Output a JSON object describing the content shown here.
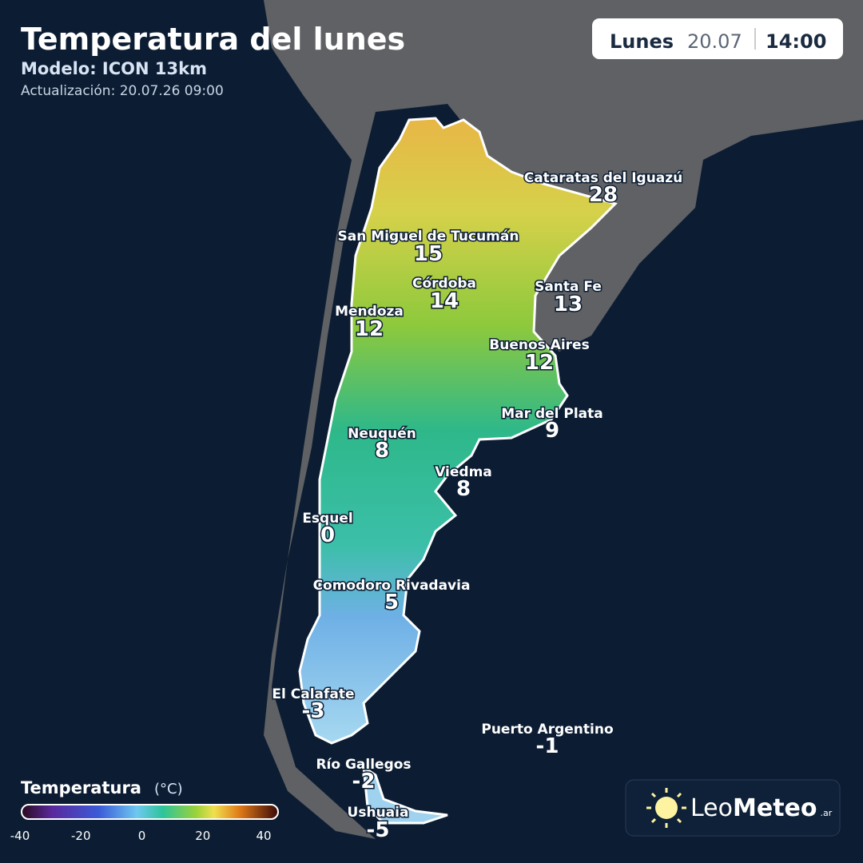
{
  "header": {
    "title": "Temperatura del lunes",
    "model": "Modelo: ICON 13km",
    "updated": "Actualización: 20.07.26 09:00"
  },
  "date_box": {
    "day": "Lunes",
    "date": "20.07",
    "time": "14:00"
  },
  "cities": [
    {
      "name": "Cataratas del Iguazú",
      "temp": 28
    },
    {
      "name": "San Miguel de Tucumán",
      "temp": 15
    },
    {
      "name": "Córdoba",
      "temp": 14
    },
    {
      "name": "Santa Fe",
      "temp": 13
    },
    {
      "name": "Mendoza",
      "temp": 12
    },
    {
      "name": "Buenos Aires",
      "temp": 12
    },
    {
      "name": "Mar del Plata",
      "temp": 9
    },
    {
      "name": "Neuquén",
      "temp": 8
    },
    {
      "name": "Viedma",
      "temp": 8
    },
    {
      "name": "Esquel",
      "temp": 0
    },
    {
      "name": "Comodoro Rivadavia",
      "temp": 5
    },
    {
      "name": "El Calafate",
      "temp": -3
    },
    {
      "name": "Puerto Argentino",
      "temp": -1
    },
    {
      "name": "Río Gallegos",
      "temp": -2
    },
    {
      "name": "Ushuaia",
      "temp": -5
    }
  ],
  "legend": {
    "title": "Temperatura",
    "unit": "(°C)",
    "range": [
      -40,
      40
    ],
    "ticks": [
      -40,
      -20,
      0,
      20,
      40
    ]
  },
  "logo": {
    "part1": "Leo",
    "part2": "Meteo",
    "suffix": ".ar"
  }
}
